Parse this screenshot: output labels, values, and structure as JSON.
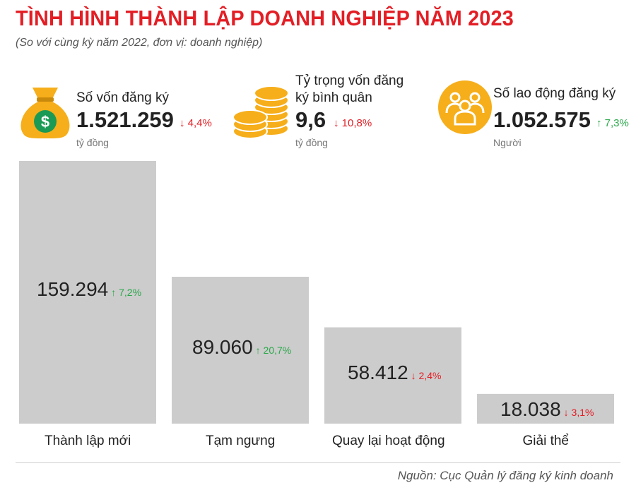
{
  "title": "TÌNH HÌNH THÀNH LẬP DOANH NGHIỆP NĂM 2023",
  "subtitle": "(So với cùng kỳ năm 2022, đơn vị: doanh nghiệp)",
  "colors": {
    "accent": "#e31e25",
    "icon": "#f6ae1a",
    "bar": "#cccccc",
    "up": "#2aa84a",
    "down": "#e31e25"
  },
  "stats": [
    {
      "icon": "money-bag-icon",
      "label_line1": "Số vốn đăng ký",
      "label_line2": "",
      "value": "1.521.259",
      "change": "↓ 4,4%",
      "direction": "down",
      "unit": "tỷ đồng"
    },
    {
      "icon": "coins-icon",
      "label_line1": "Tỷ trọng vốn đăng",
      "label_line2": "ký bình quân",
      "value": "9,6",
      "change": "↓ 10,8%",
      "direction": "down",
      "unit": "tỷ đồng"
    },
    {
      "icon": "people-icon",
      "label_line1": "Số lao động đăng ký",
      "label_line2": "",
      "value": "1.052.575",
      "change": "↑ 7,3%",
      "direction": "up",
      "unit": "Người"
    }
  ],
  "chart_data": {
    "type": "bar",
    "categories": [
      "Thành lập mới",
      "Tạm ngưng",
      "Quay lại hoạt động",
      "Giải thể"
    ],
    "values": [
      159294,
      89060,
      58412,
      18038
    ],
    "value_labels": [
      "159.294",
      "89.060",
      "58.412",
      "18.038"
    ],
    "changes": [
      "↑ 7,2%",
      "↑ 20,7%",
      "↓ 2,4%",
      "↓ 3,1%"
    ],
    "change_directions": [
      "up",
      "up",
      "down",
      "down"
    ],
    "ylim": [
      0,
      159294
    ]
  },
  "source": "Nguồn: Cục Quản lý đăng ký kinh doanh"
}
